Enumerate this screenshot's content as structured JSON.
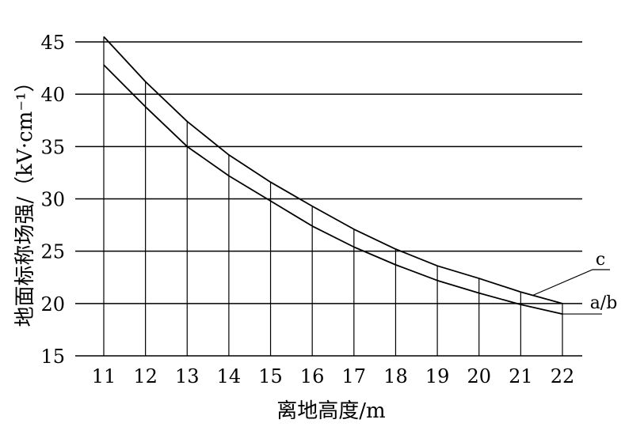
{
  "chart_data": {
    "type": "line",
    "title": "",
    "xlabel": "离地高度/m",
    "ylabel": "地面标称场强/（kV·cm⁻¹）",
    "x": [
      11,
      12,
      13,
      14,
      15,
      16,
      17,
      18,
      19,
      20,
      21,
      22
    ],
    "xlim": [
      11,
      22
    ],
    "ylim": [
      15,
      45
    ],
    "yticks": [
      15,
      20,
      25,
      30,
      35,
      40,
      45
    ],
    "grid": "horizontal lines at y ticks, vertical lines at x ticks below curve c",
    "series": [
      {
        "name": "c",
        "values": [
          45.5,
          41.2,
          37.4,
          34.2,
          31.6,
          29.3,
          27.1,
          25.2,
          23.6,
          22.4,
          21.1,
          20.0
        ],
        "color": "#000000"
      },
      {
        "name": "a/b",
        "values": [
          42.8,
          38.8,
          35.0,
          32.2,
          29.8,
          27.4,
          25.4,
          23.7,
          22.2,
          21.0,
          19.9,
          19.0
        ],
        "color": "#000000"
      }
    ]
  }
}
